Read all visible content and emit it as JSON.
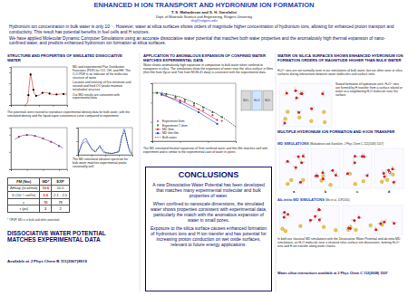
{
  "header": {
    "title": "ENHANCED H ION TRANSPORT AND HYDRONIUM ION FORMATION",
    "authors": "T. S. Mahadevan and S. H. Garofalini",
    "affiliation": "Dept. of Materials Science and Engineering, Rutgers University",
    "email": "shg@rutgers.edu"
  },
  "abstract": [
    "Hydronium ion concentration in bulk water is only 10⁻⁷. However, water at silica surfaces shows orders of magnitude higher concentration of hydronium ions, allowing for enhanced proton transport and conductivity. This result has potential benefits in fuel cells and H sources.",
    "We have applied Molecular Dynamic Computer Simulations using an accurate dissociative water potential that matches both water properties and the anomalously high thermal expansion of nano-confined water, and predicts enhanced hydronium ion formation at silica surfaces."
  ],
  "left": {
    "heading": "STRUCTURE AND PROPERTIES OF SIMULATED DISSOCIATIVE WATER",
    "pdf_text": [
      "MD and experimental Pair Distribution Functions (PDF) for OO, OH, and HH. The O-O PDF is an indicator of the molecular structure of water",
      "Location and intensity of first minimum and second and third OO peaks maintain tetrahedral structure",
      "Our MD results are consistent with experimental data"
    ],
    "potential_text": "The potentials were trained to reproduce experimental density data for bulk water, with the simulated density and the liquid-vapor coexistence curve compared to experiment.",
    "spectrum_text": "The MD simulated vibration spectrum for bulk water matches experimental peaks reasonably well",
    "table": {
      "header": [
        "FM (Nm)",
        "MD*",
        "EXP"
      ],
      "rows": [
        [
          "ΔHvap (kcal/mol)",
          "10.6",
          "10.5"
        ],
        [
          "D (10⁻⁵ cm²/s)",
          "2.6",
          "2.1 - 2.5"
        ],
        [
          "ε",
          "70",
          "78"
        ],
        [
          "τ (ps)",
          "2",
          "2"
        ]
      ]
    },
    "footnote": "* TIP4P, MD is in bulk and other potentials",
    "summary": "DISSOCIATIVE WATER POTENTIAL MATCHES EXPERIMENTAL DATA",
    "reference": "Available at J Phys Chem B 111(2007)8919"
  },
  "middle": {
    "heading": "APPLICATION TO ANOMALOUS EXPANSION OF CONFINED WATER MATCHES EXPERIMENTAL DATA",
    "text": "Water shows anomalously high expansion in comparison to bulk water when confined to nanopores in silica. The simulations show the expansion of water near the silica surface in films (thin film from Vycor and 7nm from MCM-41 data) is consistent with the experimental data.",
    "schematic": [
      "SiO₂",
      "H₂O",
      "SiO₂"
    ],
    "caption": "The MD simulated thermal expansion of 3nm confined water and thin film matches well with experiment and is similar to the experimental case of water in pores",
    "conclusions": {
      "title": "CONCLUSIONS",
      "items": [
        "A new Dissociative Water Potential has been developed that matches many experimental molecular and bulk properties of water.",
        "When confined to nanoscale dimensions, the simulated water shows properties consistent with experimental data, particularly the match with the anomalous expansion of water in small pores.",
        "Exposure to the silica surface causes enhanced formation of hydronium ions and H ion transfer and has potential for increasing proton conduction on wet oxide surfaces, relevant to future energy applications."
      ]
    }
  },
  "right": {
    "heading": "WATER ON SILICA SURFACES SHOWS ENHANCED HYDRONIUM ION FORMATION ORDERS OF MAGNITUDE HIGHER THAN BULK WATER",
    "text": "H₃O⁺ ions are not normally seen in our simulations of bulk water, but are often seen at silica surfaces during interactions between water molecules and surface sites.",
    "figure_text": "Stated formation of hydronium ions: H₃O⁺ ions are formed by H transfer from a surface silanol or water to a neighboring H₂O molecule near the surface.",
    "heading2": "MULTIPLE HYDRONIUM ION FORMATION AND H ION TRANSFER",
    "md_title": "MD SIMULATIONS",
    "md_citation": "(Mahadevan and Garofalini, J Phys Chem C 112(2008) 1507)",
    "panel_labels": [
      "a",
      "b",
      "c",
      "d"
    ],
    "abinitio_title": "Ab-initio MD SIMULATIONS",
    "abinitio_citation": "(Mo et al. JCP2005)",
    "abinitio_text": "In both our classical MD simulations with the Dissociative Water Potential and ab-initio MD simulations, an H₂O molecule near a strained silica surface site dissociates, forming H₃O⁺ ions and H ion transfer along water chains.",
    "reference": "Water-silica interactions available at J Phys Chem C 112(2008) 1507"
  },
  "chart_data": [
    {
      "type": "line",
      "xlim": [
        0,
        8
      ],
      "ylim": [
        0,
        3.5
      ],
      "xticks": [
        0,
        2,
        4,
        6,
        8
      ],
      "yticks": [
        0,
        1,
        2,
        3
      ],
      "tick_labels": false,
      "series": [
        {
          "color": "#d62728",
          "line_style": "solid",
          "marker": "none",
          "x": [
            2,
            2.4,
            2.6,
            2.8,
            3.0,
            3.3,
            3.6,
            4.0,
            4.5,
            5.0,
            5.5,
            6.0,
            6.5,
            7.0,
            7.5,
            8.0
          ],
          "values": [
            0,
            0.2,
            1.8,
            2.9,
            2.2,
            1.1,
            0.85,
            0.9,
            1.1,
            1.15,
            1.05,
            0.95,
            0.95,
            1.0,
            1.02,
            1.0
          ]
        },
        {
          "color": "#000000",
          "line_style": "none",
          "marker": "circle",
          "x": [
            2.5,
            2.8,
            3.2,
            3.6,
            4.5,
            5.5,
            6.5,
            7.5
          ],
          "values": [
            0.9,
            2.8,
            1.4,
            0.85,
            1.12,
            1.05,
            0.97,
            1.01
          ]
        }
      ]
    },
    {
      "type": "line",
      "xlim": [
        240,
        380
      ],
      "ylim": [
        0.9,
        1.02
      ],
      "xticks": [
        240,
        280,
        320,
        360
      ],
      "yticks": [
        0.9,
        0.95,
        1.0
      ],
      "tick_labels": false,
      "series": [
        {
          "color": "#1f4fd0",
          "line_style": "solid",
          "marker": "none",
          "x": [
            250,
            270,
            290,
            310,
            330,
            350,
            370
          ],
          "values": [
            0.987,
            0.998,
            0.999,
            0.993,
            0.984,
            0.974,
            0.961
          ]
        },
        {
          "color": "#d62728",
          "line_style": "none",
          "marker": "square",
          "x": [
            260,
            280,
            300,
            320,
            340,
            360
          ],
          "values": [
            0.994,
            0.999,
            0.996,
            0.989,
            0.979,
            0.967
          ]
        }
      ]
    },
    {
      "type": "line",
      "xlim": [
        0,
        4000
      ],
      "ylim": [
        0,
        1
      ],
      "xticks": [
        0,
        1000,
        2000,
        3000,
        4000
      ],
      "yticks": [
        0,
        0.5,
        1
      ],
      "tick_labels": false,
      "series": [
        {
          "color": "#1f4fd0",
          "line_style": "solid",
          "marker": "none",
          "x": [
            0,
            200,
            400,
            600,
            800,
            1000,
            1300,
            1600,
            1700,
            1900,
            2500,
            3000,
            3200,
            3400,
            3600,
            3800,
            4000
          ],
          "values": [
            0,
            0.3,
            0.55,
            0.6,
            0.4,
            0.2,
            0.1,
            0.35,
            0.2,
            0.08,
            0.05,
            0.1,
            0.6,
            0.95,
            0.5,
            0.1,
            0.02
          ]
        },
        {
          "color": "#000000",
          "line_style": "dashed",
          "marker": "none",
          "x": [
            0,
            300,
            600,
            900,
            1200,
            1650,
            2000,
            2500,
            3000,
            3250,
            3450,
            3700,
            4000
          ],
          "values": [
            0,
            0.4,
            0.5,
            0.3,
            0.12,
            0.3,
            0.08,
            0.05,
            0.12,
            0.7,
            0.85,
            0.3,
            0.02
          ]
        }
      ]
    },
    {
      "type": "line",
      "xlim": [
        0,
        90
      ],
      "ylim": [
        0.95,
        1.01
      ],
      "xticks": [
        0,
        30,
        60,
        90
      ],
      "yticks": [
        0.95,
        0.97,
        0.99,
        1.01
      ],
      "tick_labels": false,
      "legend": "lower left",
      "series": [
        {
          "name": "Experiment 6nm",
          "color": "#d63fb8",
          "line_style": "none",
          "marker": "circle",
          "x": [
            5,
            15,
            25,
            35,
            45,
            55,
            65,
            75
          ],
          "values": [
            1.0,
            0.998,
            0.995,
            0.991,
            0.987,
            0.982,
            0.977,
            0.971
          ]
        },
        {
          "name": "Experiment 7.4nm",
          "color": "#2ca02c",
          "line_style": "none",
          "marker": "square",
          "x": [
            5,
            15,
            25,
            35,
            45,
            55,
            65,
            75
          ],
          "values": [
            1.0,
            0.999,
            0.996,
            0.993,
            0.989,
            0.985,
            0.98,
            0.975
          ]
        },
        {
          "name": "MD 3nm",
          "color": "#d62728",
          "line_style": "solid",
          "marker": "circle",
          "x": [
            10,
            30,
            50,
            70
          ],
          "values": [
            0.998,
            0.992,
            0.983,
            0.972
          ]
        },
        {
          "name": "MD thin film",
          "color": "#1f4fd0",
          "line_style": "solid",
          "marker": "square",
          "x": [
            10,
            30,
            50,
            70
          ],
          "values": [
            0.999,
            0.99,
            0.98,
            0.968
          ]
        },
        {
          "name": "Bulk water",
          "color": "#000000",
          "line_style": "dashed",
          "marker": "none",
          "x": [
            0,
            10,
            20,
            30,
            40,
            50,
            60,
            70,
            80,
            90
          ],
          "values": [
            1.0,
            1.0,
            0.998,
            0.996,
            0.992,
            0.988,
            0.983,
            0.978,
            0.972,
            0.965
          ]
        }
      ]
    }
  ]
}
